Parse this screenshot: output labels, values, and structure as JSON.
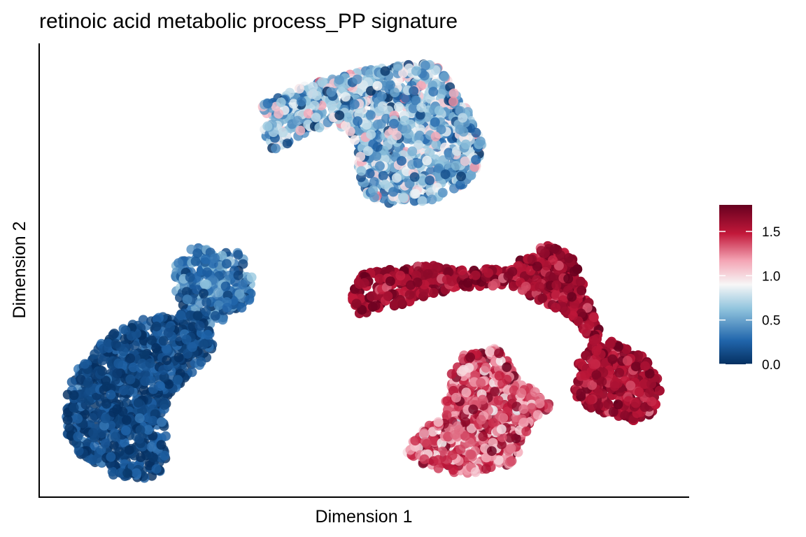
{
  "chart_data": {
    "type": "scatter",
    "title": "retinoic acid metabolic process_PP signature",
    "xlabel": "Dimension 1",
    "ylabel": "Dimension 2",
    "x_ticks_shown": false,
    "y_ticks_shown": false,
    "grid": false,
    "legend_placement": "right",
    "colorbar": {
      "ticks": [
        {
          "value": 0.0,
          "label": "0.0"
        },
        {
          "value": 0.5,
          "label": "0.5"
        },
        {
          "value": 1.0,
          "label": "1.0"
        },
        {
          "value": 1.5,
          "label": "1.5"
        }
      ],
      "range": [
        0.0,
        1.8
      ],
      "colors": [
        {
          "stop": 0.0,
          "color": "#053061"
        },
        {
          "stop": 0.15,
          "color": "#2166ac"
        },
        {
          "stop": 0.35,
          "color": "#92c5de"
        },
        {
          "stop": 0.5,
          "color": "#f7f7f7"
        },
        {
          "stop": 0.65,
          "color": "#f4a5b5"
        },
        {
          "stop": 0.82,
          "color": "#c2183a"
        },
        {
          "stop": 1.0,
          "color": "#67001f"
        }
      ]
    },
    "clusters": [
      {
        "id": "top-center",
        "mean": 0.6,
        "spread": 0.55,
        "hull": [
          [
            375,
            150
          ],
          [
            420,
            128
          ],
          [
            470,
            112
          ],
          [
            530,
            100
          ],
          [
            580,
            92
          ],
          [
            630,
            92
          ],
          [
            640,
            115
          ],
          [
            670,
            160
          ],
          [
            690,
            210
          ],
          [
            680,
            245
          ],
          [
            660,
            265
          ],
          [
            610,
            290
          ],
          [
            555,
            295
          ],
          [
            520,
            275
          ],
          [
            510,
            230
          ],
          [
            505,
            195
          ],
          [
            480,
            175
          ],
          [
            450,
            185
          ],
          [
            420,
            200
          ],
          [
            395,
            220
          ],
          [
            378,
            200
          ]
        ]
      },
      {
        "id": "left-upper",
        "mean": 0.35,
        "spread": 0.35,
        "hull": [
          [
            250,
            380
          ],
          [
            270,
            355
          ],
          [
            300,
            352
          ],
          [
            340,
            360
          ],
          [
            362,
            390
          ],
          [
            358,
            430
          ],
          [
            330,
            455
          ],
          [
            300,
            465
          ],
          [
            270,
            455
          ],
          [
            252,
            420
          ]
        ]
      },
      {
        "id": "left-lower",
        "mean": 0.12,
        "spread": 0.22,
        "hull": [
          [
            92,
            555
          ],
          [
            110,
            530
          ],
          [
            155,
            480
          ],
          [
            200,
            458
          ],
          [
            250,
            450
          ],
          [
            280,
            445
          ],
          [
            300,
            470
          ],
          [
            305,
            500
          ],
          [
            270,
            540
          ],
          [
            240,
            565
          ],
          [
            235,
            605
          ],
          [
            240,
            655
          ],
          [
            230,
            680
          ],
          [
            200,
            685
          ],
          [
            160,
            680
          ],
          [
            120,
            660
          ],
          [
            95,
            620
          ]
        ]
      },
      {
        "id": "middle-arc",
        "mean": 1.6,
        "spread": 0.25,
        "hull": [
          [
            500,
            425
          ],
          [
            520,
            390
          ],
          [
            565,
            385
          ],
          [
            620,
            378
          ],
          [
            660,
            385
          ],
          [
            720,
            385
          ],
          [
            745,
            370
          ],
          [
            780,
            350
          ],
          [
            815,
            360
          ],
          [
            830,
            395
          ],
          [
            845,
            440
          ],
          [
            860,
            480
          ],
          [
            880,
            490
          ],
          [
            920,
            510
          ],
          [
            945,
            550
          ],
          [
            935,
            590
          ],
          [
            910,
            605
          ],
          [
            860,
            590
          ],
          [
            820,
            575
          ],
          [
            825,
            520
          ],
          [
            845,
            495
          ],
          [
            830,
            465
          ],
          [
            790,
            440
          ],
          [
            760,
            425
          ],
          [
            720,
            410
          ],
          [
            680,
            410
          ],
          [
            620,
            420
          ],
          [
            560,
            440
          ],
          [
            515,
            450
          ]
        ]
      },
      {
        "id": "bottom-center",
        "mean": 1.35,
        "spread": 0.45,
        "hull": [
          [
            580,
            645
          ],
          [
            600,
            620
          ],
          [
            630,
            595
          ],
          [
            640,
            565
          ],
          [
            648,
            515
          ],
          [
            670,
            505
          ],
          [
            710,
            498
          ],
          [
            728,
            520
          ],
          [
            740,
            545
          ],
          [
            770,
            560
          ],
          [
            790,
            580
          ],
          [
            760,
            600
          ],
          [
            745,
            640
          ],
          [
            730,
            665
          ],
          [
            700,
            670
          ],
          [
            665,
            680
          ],
          [
            630,
            672
          ],
          [
            600,
            662
          ]
        ]
      }
    ]
  }
}
